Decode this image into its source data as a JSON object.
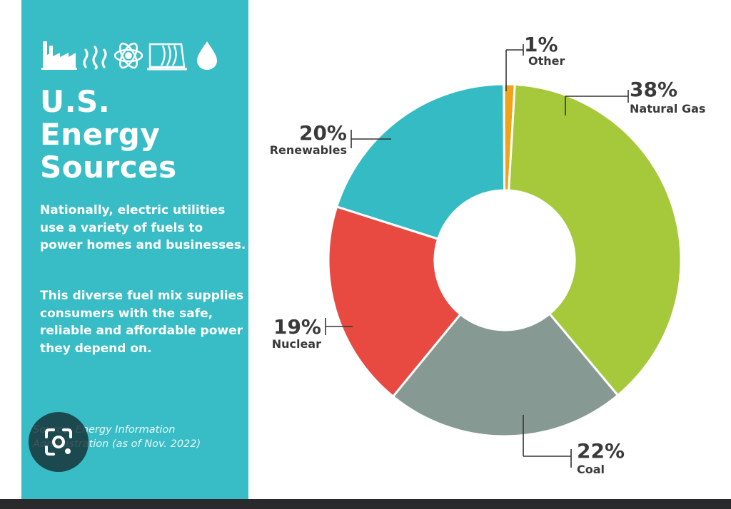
{
  "panel": {
    "title_lines": [
      "U.S.",
      "Energy",
      "Sources"
    ],
    "paragraph_1": "Nationally, electric utilities use a variety of fuels to power homes and businesses.",
    "paragraph_2": "This diverse fuel mix supplies consumers with the safe, reliable and affordable power they depend on.",
    "source_line_1": "Source: Energy Information",
    "source_line_2": "Administration (as of Nov. 2022)",
    "icons": [
      "factory-icon",
      "heat-waves-icon",
      "atom-icon",
      "dam-icon",
      "water-drop-icon"
    ],
    "background_color": "#38bcc6"
  },
  "chart_data": {
    "type": "pie",
    "variant": "donut",
    "title": "U.S. Energy Sources",
    "slices": [
      {
        "label": "Other",
        "value": 1,
        "value_label": "1%",
        "color": "#f0a21a"
      },
      {
        "label": "Natural Gas",
        "value": 38,
        "value_label": "38%",
        "color": "#a6c93b"
      },
      {
        "label": "Coal",
        "value": 22,
        "value_label": "22%",
        "color": "#869a93"
      },
      {
        "label": "Nuclear",
        "value": 19,
        "value_label": "19%",
        "color": "#e84a42"
      },
      {
        "label": "Renewables",
        "value": 20,
        "value_label": "20%",
        "color": "#35bbc4"
      }
    ]
  }
}
